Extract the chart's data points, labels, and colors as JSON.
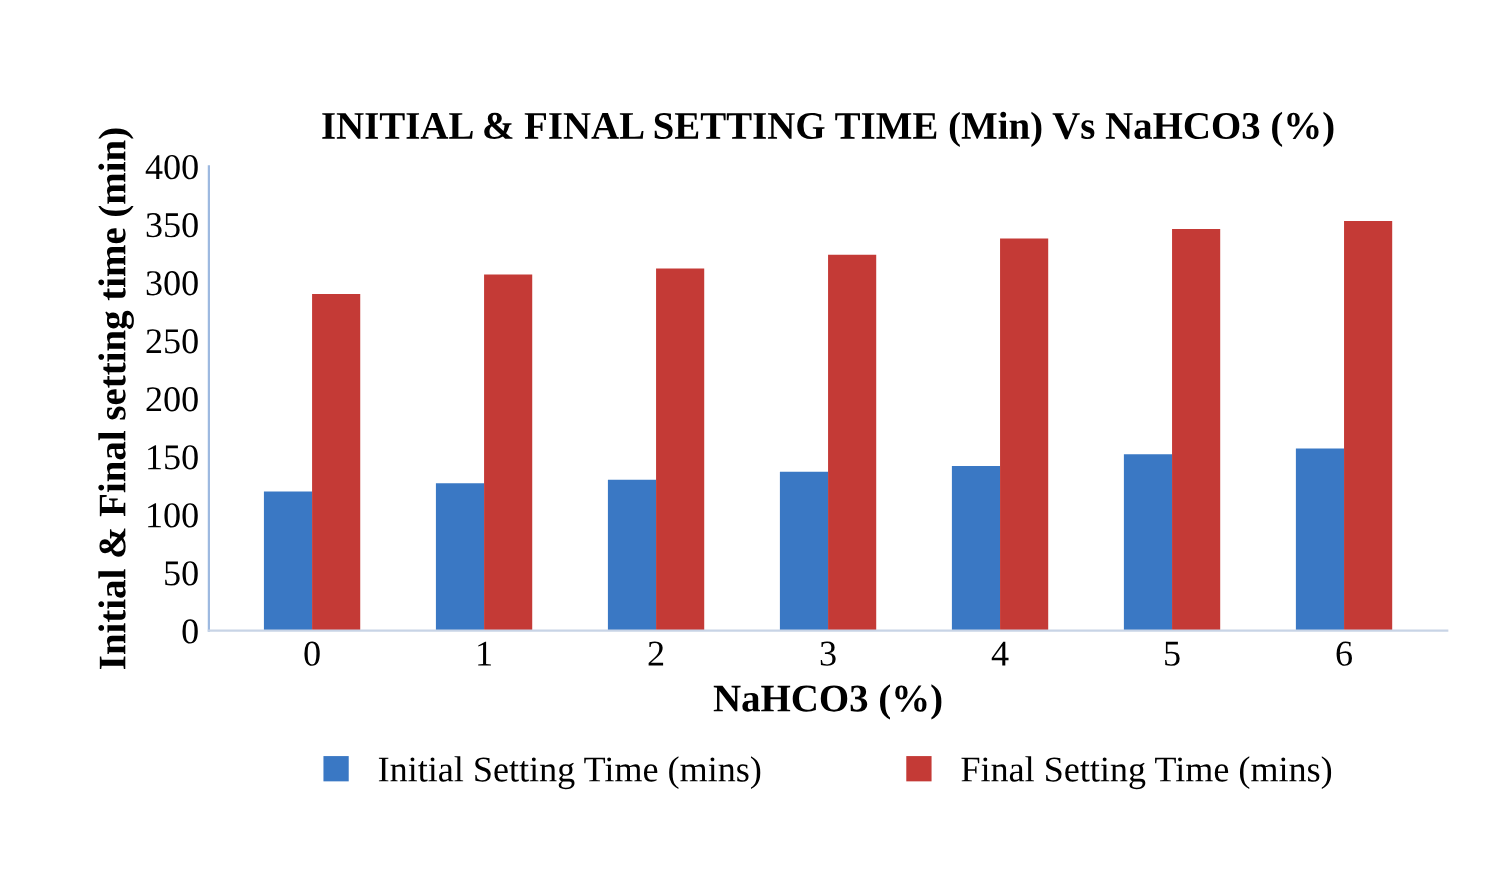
{
  "chart_data": {
    "type": "bar",
    "title": "INITIAL & FINAL SETTING TIME (Min) Vs NaHCO3 (%)",
    "xlabel": "NaHCO3 (%)",
    "ylabel": "Initial & Final setting time (min)",
    "categories": [
      "0",
      "1",
      "2",
      "3",
      "4",
      "5",
      "6"
    ],
    "series": [
      {
        "name": "Initial Setting Time (mins)",
        "color": "#3a78c4",
        "values": [
          120,
          127,
          130,
          137,
          142,
          152,
          157
        ]
      },
      {
        "name": "Final Setting Time (mins)",
        "color": "#c43a36",
        "values": [
          290,
          307,
          312,
          324,
          338,
          346,
          353
        ]
      }
    ],
    "ylim": [
      0,
      400
    ],
    "yticks": [
      0,
      50,
      100,
      150,
      200,
      250,
      300,
      350,
      400
    ],
    "grid": false,
    "legend": "bottom"
  }
}
